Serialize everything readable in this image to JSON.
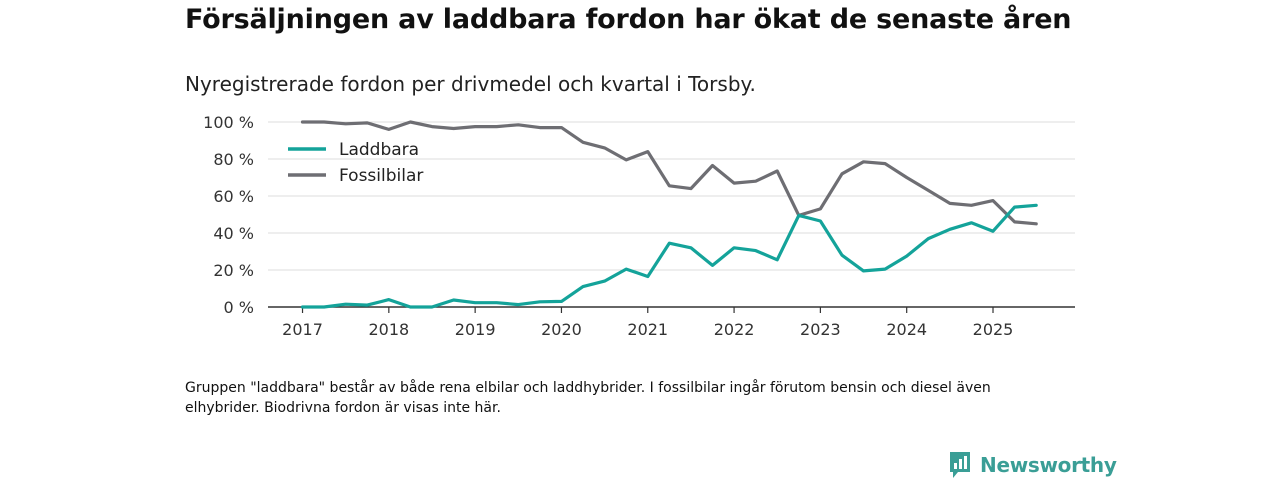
{
  "title": "Försäljningen av laddbara fordon har ökat de senaste åren",
  "subtitle": "Nyregistrerade fordon per drivmedel och kvartal i Torsby.",
  "note": "Gruppen \"laddbara\" består av både rena elbilar och laddhybrider. I fossilbilar ingår förutom bensin och diesel även elhybrider. Biodrivna fordon är visas inte här.",
  "brand": "Newsworthy",
  "colors": {
    "laddbara": "#14a39a",
    "fossil": "#6e6e73",
    "grid": "#dddddd",
    "axis": "#333333"
  },
  "chart_data": {
    "type": "line",
    "title": "Nyregistrerade fordon per drivmedel och kvartal i Torsby.",
    "xlabel": "",
    "ylabel": "",
    "ylim": [
      0,
      100
    ],
    "xlim": [
      2016.6,
      2025.95
    ],
    "yticks": [
      0,
      20,
      40,
      60,
      80,
      100
    ],
    "ytick_labels": [
      "0 %",
      "20 %",
      "40 %",
      "60 %",
      "80 %",
      "100 %"
    ],
    "xticks": [
      2017,
      2018,
      2019,
      2020,
      2021,
      2022,
      2023,
      2024,
      2025
    ],
    "xtick_labels": [
      "2017",
      "2018",
      "2019",
      "2020",
      "2021",
      "2022",
      "2023",
      "2024",
      "2025"
    ],
    "legend_position": "top-left",
    "x": [
      2017.0,
      2017.25,
      2017.5,
      2017.75,
      2018.0,
      2018.25,
      2018.5,
      2018.75,
      2019.0,
      2019.25,
      2019.5,
      2019.75,
      2020.0,
      2020.25,
      2020.5,
      2020.75,
      2021.0,
      2021.25,
      2021.5,
      2021.75,
      2022.0,
      2022.25,
      2022.5,
      2022.75,
      2023.0,
      2023.25,
      2023.5,
      2023.75,
      2024.0,
      2024.25,
      2024.5,
      2024.75,
      2025.0,
      2025.25,
      2025.5
    ],
    "series": [
      {
        "name": "Laddbara",
        "color": "#14a39a",
        "values": [
          0,
          0,
          1.5,
          1,
          4,
          0,
          0,
          3.8,
          2.3,
          2.3,
          1.3,
          2.8,
          3,
          11,
          14,
          20.5,
          16.5,
          34.5,
          32,
          22.5,
          32,
          30.5,
          25.5,
          49.5,
          46.5,
          28,
          19.5,
          20.5,
          27.5,
          37,
          42,
          45.5,
          41,
          54,
          55
        ]
      },
      {
        "name": "Fossilbilar",
        "color": "#6e6e73",
        "values": [
          100,
          100,
          99,
          99.5,
          96,
          100,
          97.5,
          96.5,
          97.5,
          97.5,
          98.5,
          97,
          97,
          89,
          86,
          79.5,
          84,
          65.5,
          64,
          76.5,
          67,
          68,
          73.5,
          49.5,
          53,
          72,
          78.5,
          77.5,
          70,
          63,
          56,
          55,
          57.5,
          46,
          45
        ]
      }
    ]
  }
}
